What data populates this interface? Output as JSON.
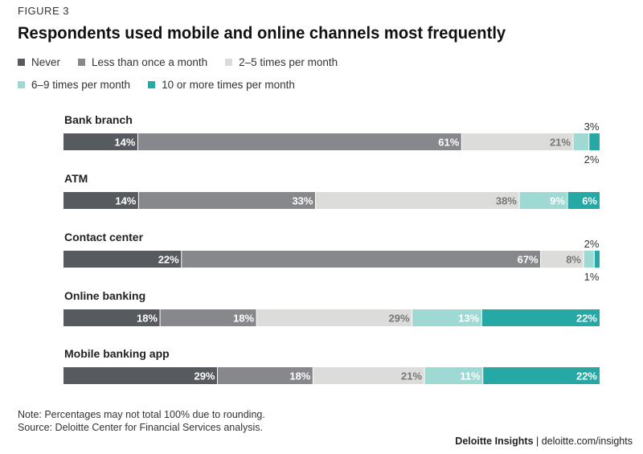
{
  "figure_label": "FIGURE 3",
  "legend_items": [
    {
      "label": "Never",
      "color": "#575a5e"
    },
    {
      "label": "Less than once a month",
      "color": "#87888b"
    },
    {
      "label": "2–5 times per month",
      "color": "#dcdcda"
    },
    {
      "label": "6–9 times per month",
      "color": "#9fd9d4"
    },
    {
      "label": "10 or more times per month",
      "color": "#26a9a5"
    }
  ],
  "notes": {
    "note": "Note: Percentages may not total 100% due to rounding.",
    "source": "Source: Deloitte Center for Financial Services analysis."
  },
  "brand": {
    "name": "Deloitte Insights",
    "separator": " | ",
    "url": "deloitte.com/insights"
  },
  "chart_data": {
    "type": "bar",
    "orientation": "horizontal",
    "stacked": true,
    "title": "Respondents used mobile and online channels most frequently",
    "categories": [
      "Bank branch",
      "ATM",
      "Contact center",
      "Online banking",
      "Mobile banking app"
    ],
    "series": [
      {
        "name": "Never",
        "color": "#575a5e",
        "values": [
          14,
          14,
          22,
          18,
          29
        ]
      },
      {
        "name": "Less than once a month",
        "color": "#87888b",
        "values": [
          61,
          33,
          67,
          18,
          18
        ]
      },
      {
        "name": "2–5 times per month",
        "color": "#dcdcda",
        "values": [
          21,
          38,
          8,
          29,
          21
        ]
      },
      {
        "name": "6–9 times per month",
        "color": "#9fd9d4",
        "values": [
          3,
          9,
          2,
          13,
          11
        ]
      },
      {
        "name": "10 or more times per month",
        "color": "#26a9a5",
        "values": [
          2,
          6,
          1,
          22,
          22
        ]
      }
    ],
    "unit": "%",
    "legend_position": "top",
    "grid": false
  }
}
